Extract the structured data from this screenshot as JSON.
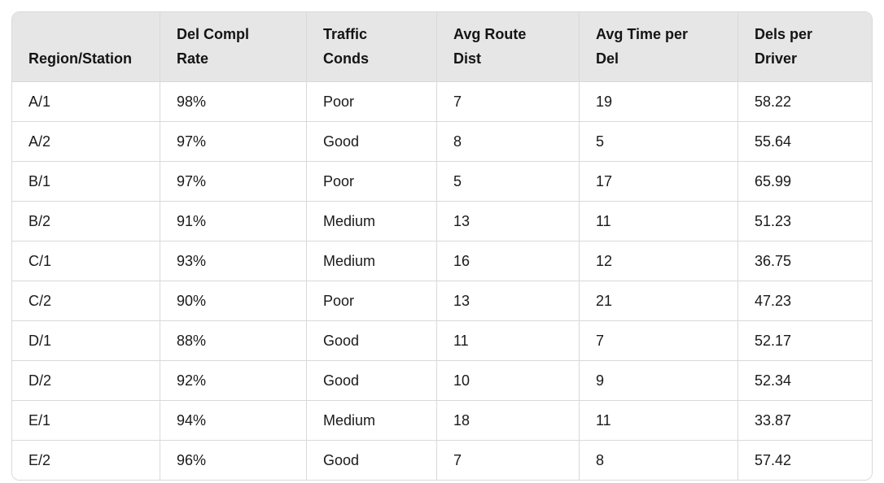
{
  "colors": {
    "header_bg": "#e6e6e6",
    "border": "#d9d9d9",
    "text": "#1a1a1a",
    "row_bg": "#ffffff"
  },
  "header_lines": [
    [
      "Region/Station"
    ],
    [
      "Del Compl",
      "Rate"
    ],
    [
      "Traffic",
      "Conds"
    ],
    [
      "Avg Route",
      "Dist"
    ],
    [
      "Avg Time per",
      "Del"
    ],
    [
      "Dels per",
      "Driver"
    ]
  ],
  "chart_data": {
    "type": "table",
    "title": "",
    "columns": [
      "Region/Station",
      "Del Compl Rate",
      "Traffic Conds",
      "Avg Route Dist",
      "Avg Time per Del",
      "Dels per Driver"
    ],
    "rows": [
      [
        "A/1",
        "98%",
        "Poor",
        "7",
        "19",
        "58.22"
      ],
      [
        "A/2",
        "97%",
        "Good",
        "8",
        "5",
        "55.64"
      ],
      [
        "B/1",
        "97%",
        "Poor",
        "5",
        "17",
        "65.99"
      ],
      [
        "B/2",
        "91%",
        "Medium",
        "13",
        "11",
        "51.23"
      ],
      [
        "C/1",
        "93%",
        "Medium",
        "16",
        "12",
        "36.75"
      ],
      [
        "C/2",
        "90%",
        "Poor",
        "13",
        "21",
        "47.23"
      ],
      [
        "D/1",
        "88%",
        "Good",
        "11",
        "7",
        "52.17"
      ],
      [
        "D/2",
        "92%",
        "Good",
        "10",
        "9",
        "52.34"
      ],
      [
        "E/1",
        "94%",
        "Medium",
        "18",
        "11",
        "33.87"
      ],
      [
        "E/2",
        "96%",
        "Good",
        "7",
        "8",
        "57.42"
      ]
    ]
  }
}
